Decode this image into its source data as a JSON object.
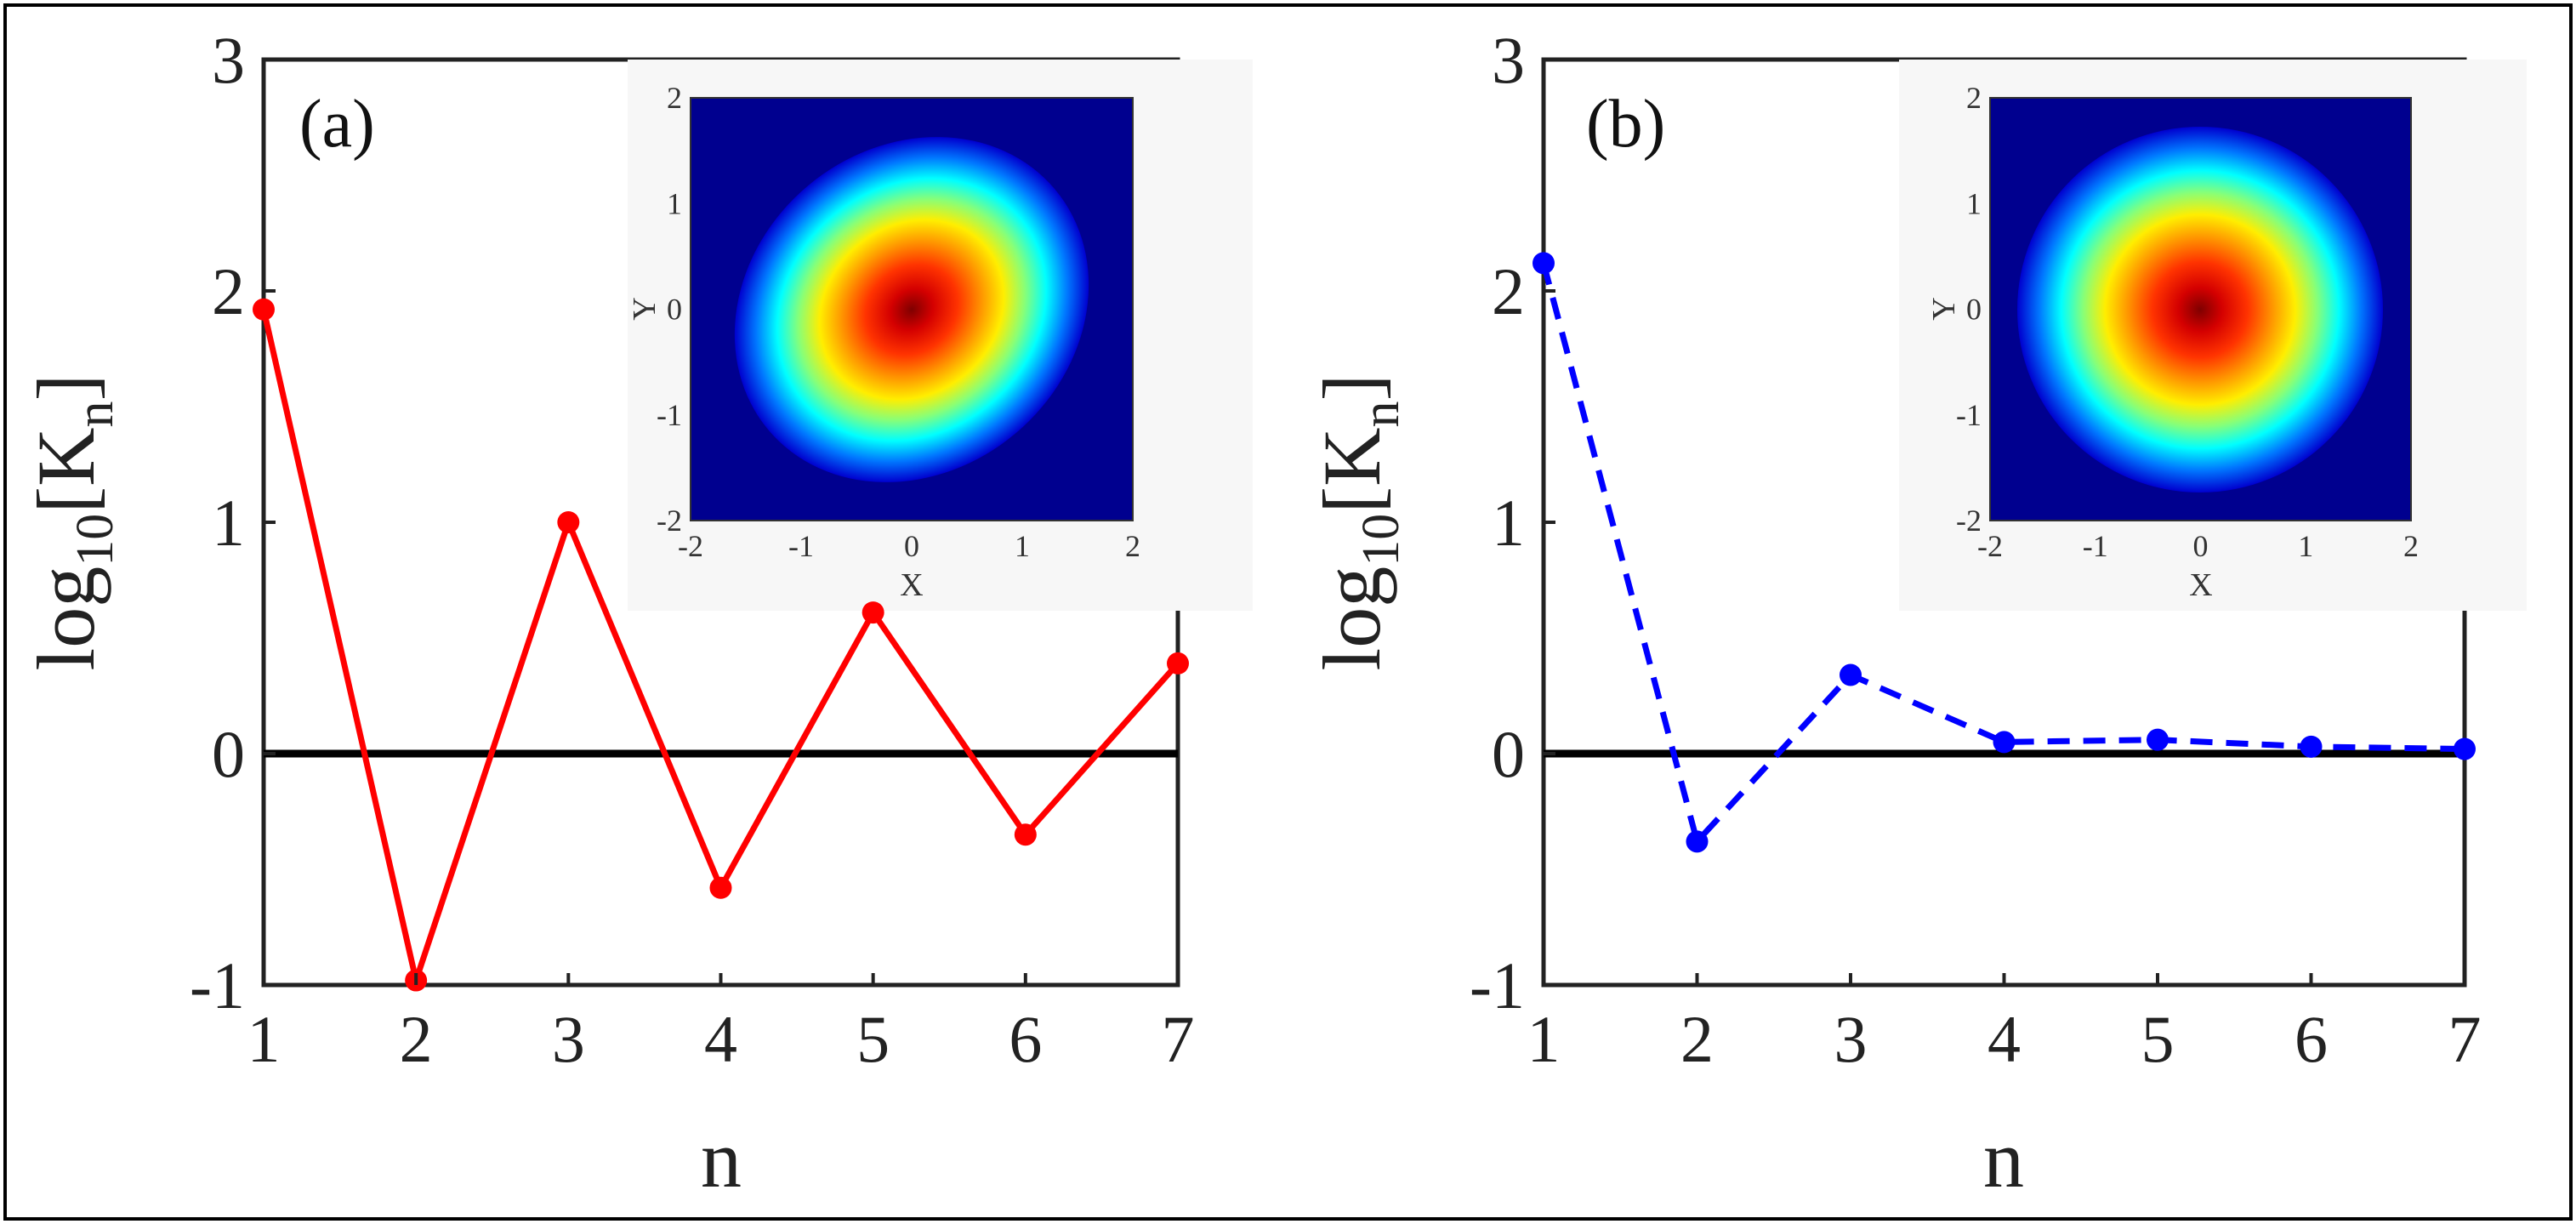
{
  "chart_data": [
    {
      "type": "line",
      "panel_label": "(a)",
      "xlabel": "n",
      "ylabel_base": "log",
      "ylabel_sub1": "10",
      "ylabel_bracket_open": "[K",
      "ylabel_sub2": "n",
      "ylabel_bracket_close": "]",
      "x": [
        1,
        2,
        3,
        4,
        5,
        6,
        7
      ],
      "series": [
        {
          "name": "log10[Kn]",
          "values": [
            1.92,
            -0.98,
            1.0,
            -0.58,
            0.61,
            -0.35,
            0.39
          ],
          "color": "#ff0000",
          "dash": "solid"
        }
      ],
      "baseline": 0,
      "xlim": [
        1,
        7
      ],
      "ylim": [
        -1,
        3
      ],
      "xticks": [
        "1",
        "2",
        "3",
        "4",
        "5",
        "6",
        "7"
      ],
      "yticks": [
        "-1",
        "0",
        "1",
        "2",
        "3"
      ],
      "inset": {
        "type": "heatmap",
        "xlabel": "X",
        "ylabel": "Y",
        "xticks": [
          "-2",
          "-1",
          "0",
          "1",
          "2"
        ],
        "yticks": [
          "-2",
          "-1",
          "0",
          "1",
          "2"
        ],
        "xlim": [
          -2,
          2
        ],
        "ylim": [
          -2,
          2
        ],
        "shape": "elliptical gaussian tilted",
        "colormap": "jet"
      }
    },
    {
      "type": "line",
      "panel_label": "(b)",
      "xlabel": "n",
      "ylabel_base": "log",
      "ylabel_sub1": "10",
      "ylabel_bracket_open": "[K",
      "ylabel_sub2": "n",
      "ylabel_bracket_close": "]",
      "x": [
        1,
        2,
        3,
        4,
        5,
        6,
        7
      ],
      "series": [
        {
          "name": "log10[Kn]",
          "values": [
            2.12,
            -0.38,
            0.34,
            0.05,
            0.06,
            0.03,
            0.02
          ],
          "color": "#0000ff",
          "dash": "dashed"
        }
      ],
      "baseline": 0,
      "xlim": [
        1,
        7
      ],
      "ylim": [
        -1,
        3
      ],
      "xticks": [
        "1",
        "2",
        "3",
        "4",
        "5",
        "6",
        "7"
      ],
      "yticks": [
        "-1",
        "0",
        "1",
        "2",
        "3"
      ],
      "inset": {
        "type": "heatmap",
        "xlabel": "X",
        "ylabel": "Y",
        "xticks": [
          "-2",
          "-1",
          "0",
          "1",
          "2"
        ],
        "yticks": [
          "-2",
          "-1",
          "0",
          "1",
          "2"
        ],
        "xlim": [
          -2,
          2
        ],
        "ylim": [
          -2,
          2
        ],
        "shape": "circular gaussian",
        "colormap": "jet"
      }
    }
  ]
}
